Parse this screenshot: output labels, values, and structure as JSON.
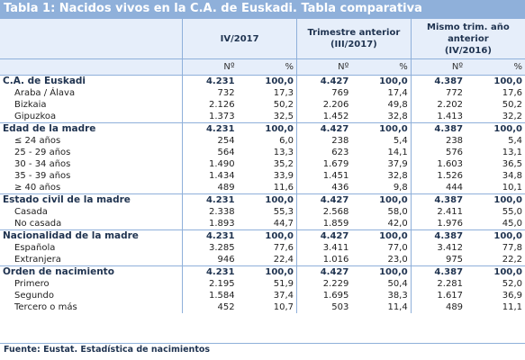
{
  "title": "Tabla 1: Nacidos vivos en la C.A. de Euskadi. Tabla comparativa",
  "columns": {
    "group1": "IV/2017",
    "group2_line1": "Trimestre anterior",
    "group2_line2": "(III/2017)",
    "group3_line1": "Mismo trim. año",
    "group3_line2": "anterior",
    "group3_line3": "(IV/2016)",
    "n_label": "Nº",
    "pct_label": "%"
  },
  "rows": [
    {
      "type": "grp",
      "label": "C.A. de Euskadi",
      "v": [
        "4.231",
        "100,0",
        "4.427",
        "100,0",
        "4.387",
        "100,0"
      ]
    },
    {
      "type": "sub",
      "label": "Araba / Álava",
      "v": [
        "732",
        "17,3",
        "769",
        "17,4",
        "772",
        "17,6"
      ]
    },
    {
      "type": "sub",
      "label": "Bizkaia",
      "v": [
        "2.126",
        "50,2",
        "2.206",
        "49,8",
        "2.202",
        "50,2"
      ]
    },
    {
      "type": "sub",
      "label": "Gipuzkoa",
      "v": [
        "1.373",
        "32,5",
        "1.452",
        "32,8",
        "1.413",
        "32,2"
      ]
    },
    {
      "type": "grp",
      "label": "Edad de la madre",
      "v": [
        "4.231",
        "100,0",
        "4.427",
        "100,0",
        "4.387",
        "100,0"
      ]
    },
    {
      "type": "sub",
      "label": "≤ 24 años",
      "v": [
        "254",
        "6,0",
        "238",
        "5,4",
        "238",
        "5,4"
      ]
    },
    {
      "type": "sub",
      "label": "25 - 29 años",
      "v": [
        "564",
        "13,3",
        "623",
        "14,1",
        "576",
        "13,1"
      ]
    },
    {
      "type": "sub",
      "label": "30 - 34 años",
      "v": [
        "1.490",
        "35,2",
        "1.679",
        "37,9",
        "1.603",
        "36,5"
      ]
    },
    {
      "type": "sub",
      "label": "35 - 39 años",
      "v": [
        "1.434",
        "33,9",
        "1.451",
        "32,8",
        "1.526",
        "34,8"
      ]
    },
    {
      "type": "sub",
      "label": "≥ 40 años",
      "v": [
        "489",
        "11,6",
        "436",
        "9,8",
        "444",
        "10,1"
      ]
    },
    {
      "type": "grp",
      "label": "Estado civil de la madre",
      "v": [
        "4.231",
        "100,0",
        "4.427",
        "100,0",
        "4.387",
        "100,0"
      ]
    },
    {
      "type": "sub",
      "label": "Casada",
      "v": [
        "2.338",
        "55,3",
        "2.568",
        "58,0",
        "2.411",
        "55,0"
      ]
    },
    {
      "type": "sub",
      "label": "No casada",
      "v": [
        "1.893",
        "44,7",
        "1.859",
        "42,0",
        "1.976",
        "45,0"
      ]
    },
    {
      "type": "grp",
      "label": "Nacionalidad de la madre",
      "v": [
        "4.231",
        "100,0",
        "4.427",
        "100,0",
        "4.387",
        "100,0"
      ]
    },
    {
      "type": "sub",
      "label": "Española",
      "v": [
        "3.285",
        "77,6",
        "3.411",
        "77,0",
        "3.412",
        "77,8"
      ]
    },
    {
      "type": "sub",
      "label": "Extranjera",
      "v": [
        "946",
        "22,4",
        "1.016",
        "23,0",
        "975",
        "22,2"
      ]
    },
    {
      "type": "grp",
      "label": "Orden de nacimiento",
      "v": [
        "4.231",
        "100,0",
        "4.427",
        "100,0",
        "4.387",
        "100,0"
      ]
    },
    {
      "type": "sub",
      "label": "Primero",
      "v": [
        "2.195",
        "51,9",
        "2.229",
        "50,4",
        "2.281",
        "52,0"
      ]
    },
    {
      "type": "sub",
      "label": "Segundo",
      "v": [
        "1.584",
        "37,4",
        "1.695",
        "38,3",
        "1.617",
        "36,9"
      ]
    },
    {
      "type": "sub",
      "label": "Tercero o más",
      "v": [
        "452",
        "10,7",
        "503",
        "11,4",
        "489",
        "11,1"
      ]
    }
  ],
  "source": "Fuente: Eustat. Estadística de nacimientos",
  "colors": {
    "header_bg": "#8fb0da",
    "subheader_bg": "#e6eefa",
    "text": "#1f3350"
  }
}
